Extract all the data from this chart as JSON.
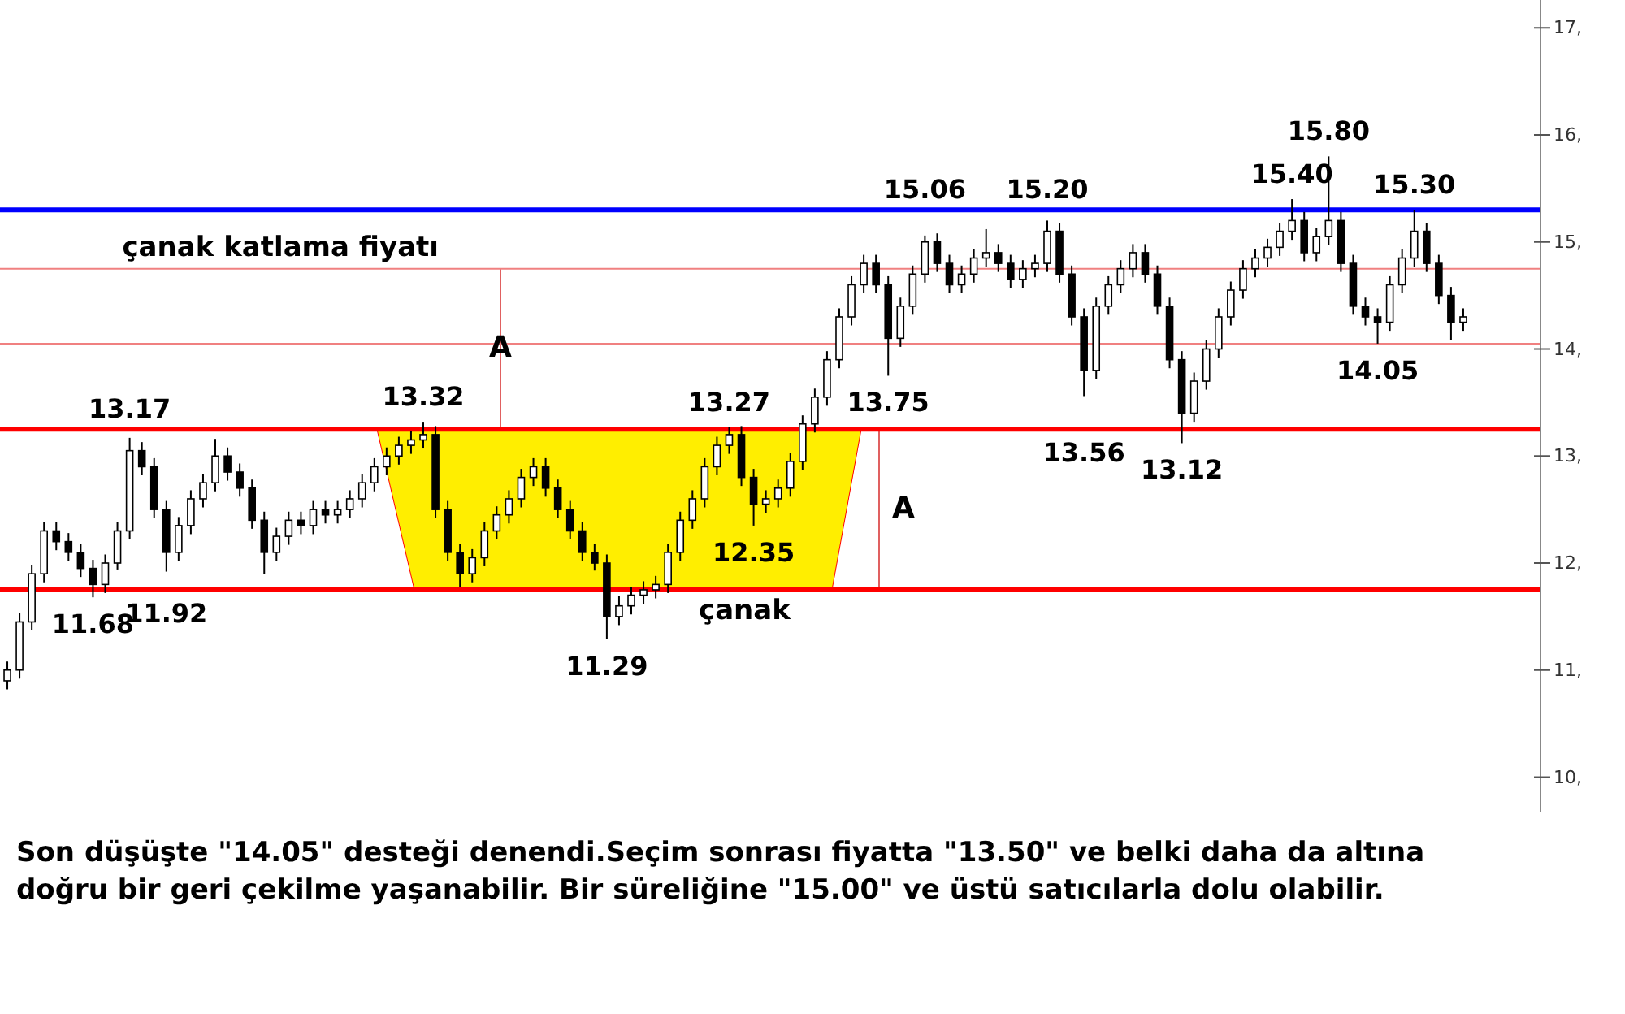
{
  "chart_data": {
    "type": "candlestick",
    "categories": [
      null,
      null,
      null,
      null,
      null,
      null,
      null,
      null,
      null,
      null,
      null,
      null,
      null,
      null,
      null,
      null,
      null,
      null,
      null,
      null,
      null,
      null,
      null,
      null,
      null,
      null,
      null,
      null,
      null,
      null,
      null,
      null,
      null,
      null,
      null,
      null,
      null,
      null,
      null,
      null,
      null,
      null,
      null,
      null,
      null,
      null,
      null,
      null,
      null,
      null,
      null,
      null,
      null,
      null,
      null,
      null,
      null,
      null,
      null,
      null,
      null,
      null,
      null,
      null,
      null,
      null,
      null,
      null,
      null,
      null,
      null,
      null,
      null,
      null,
      null,
      null,
      null,
      null,
      null,
      null,
      null,
      null,
      null,
      null,
      null,
      null,
      null,
      null,
      null,
      null,
      null,
      null,
      null,
      null,
      null,
      null,
      null,
      null,
      null,
      null,
      null,
      null,
      null,
      null,
      null,
      null,
      null,
      null,
      null,
      null,
      null,
      null,
      null,
      null,
      null,
      null,
      null,
      null,
      null,
      null
    ],
    "ohlc": [
      [
        10.9,
        11.08,
        10.82,
        11.0
      ],
      [
        11.0,
        11.53,
        10.92,
        11.45
      ],
      [
        11.45,
        11.98,
        11.37,
        11.9
      ],
      [
        11.9,
        12.38,
        11.82,
        12.3
      ],
      [
        12.3,
        12.38,
        12.12,
        12.2
      ],
      [
        12.2,
        12.28,
        12.02,
        12.1
      ],
      [
        12.1,
        12.18,
        11.87,
        11.95
      ],
      [
        11.95,
        12.03,
        11.68,
        11.8
      ],
      [
        11.8,
        12.08,
        11.72,
        12.0
      ],
      [
        12.0,
        12.38,
        11.94,
        12.3
      ],
      [
        12.3,
        13.17,
        12.22,
        13.05
      ],
      [
        13.05,
        13.13,
        12.82,
        12.9
      ],
      [
        12.9,
        12.98,
        12.42,
        12.5
      ],
      [
        12.5,
        12.58,
        11.92,
        12.1
      ],
      [
        12.1,
        12.43,
        12.02,
        12.35
      ],
      [
        12.35,
        12.68,
        12.27,
        12.6
      ],
      [
        12.6,
        12.83,
        12.52,
        12.75
      ],
      [
        12.75,
        13.16,
        12.67,
        13.0
      ],
      [
        13.0,
        13.08,
        12.77,
        12.85
      ],
      [
        12.85,
        12.93,
        12.62,
        12.7
      ],
      [
        12.7,
        12.78,
        12.32,
        12.4
      ],
      [
        12.4,
        12.48,
        11.9,
        12.1
      ],
      [
        12.1,
        12.33,
        12.02,
        12.25
      ],
      [
        12.25,
        12.48,
        12.17,
        12.4
      ],
      [
        12.4,
        12.48,
        12.27,
        12.35
      ],
      [
        12.35,
        12.58,
        12.27,
        12.5
      ],
      [
        12.5,
        12.58,
        12.37,
        12.45
      ],
      [
        12.45,
        12.58,
        12.37,
        12.5
      ],
      [
        12.5,
        12.68,
        12.42,
        12.6
      ],
      [
        12.6,
        12.83,
        12.52,
        12.75
      ],
      [
        12.75,
        12.98,
        12.67,
        12.9
      ],
      [
        12.9,
        13.08,
        12.82,
        13.0
      ],
      [
        13.0,
        13.18,
        12.92,
        13.1
      ],
      [
        13.1,
        13.23,
        13.02,
        13.15
      ],
      [
        13.15,
        13.32,
        13.07,
        13.2
      ],
      [
        13.2,
        13.28,
        12.42,
        12.5
      ],
      [
        12.5,
        12.58,
        12.02,
        12.1
      ],
      [
        12.1,
        12.18,
        11.78,
        11.9
      ],
      [
        11.9,
        12.13,
        11.82,
        12.05
      ],
      [
        12.05,
        12.38,
        11.97,
        12.3
      ],
      [
        12.3,
        12.53,
        12.22,
        12.45
      ],
      [
        12.45,
        12.68,
        12.37,
        12.6
      ],
      [
        12.6,
        12.88,
        12.52,
        12.8
      ],
      [
        12.8,
        12.98,
        12.72,
        12.9
      ],
      [
        12.9,
        12.98,
        12.62,
        12.7
      ],
      [
        12.7,
        12.78,
        12.42,
        12.5
      ],
      [
        12.5,
        12.58,
        12.22,
        12.3
      ],
      [
        12.3,
        12.38,
        12.02,
        12.1
      ],
      [
        12.1,
        12.18,
        11.93,
        12.0
      ],
      [
        12.0,
        12.08,
        11.29,
        11.5
      ],
      [
        11.5,
        11.69,
        11.42,
        11.6
      ],
      [
        11.6,
        11.78,
        11.52,
        11.7
      ],
      [
        11.7,
        11.83,
        11.62,
        11.75
      ],
      [
        11.75,
        11.88,
        11.67,
        11.8
      ],
      [
        11.8,
        12.18,
        11.72,
        12.1
      ],
      [
        12.1,
        12.48,
        12.02,
        12.4
      ],
      [
        12.4,
        12.68,
        12.32,
        12.6
      ],
      [
        12.6,
        12.98,
        12.52,
        12.9
      ],
      [
        12.9,
        13.18,
        12.82,
        13.1
      ],
      [
        13.1,
        13.27,
        13.02,
        13.2
      ],
      [
        13.2,
        13.28,
        12.72,
        12.8
      ],
      [
        12.8,
        12.88,
        12.35,
        12.55
      ],
      [
        12.55,
        12.68,
        12.47,
        12.6
      ],
      [
        12.6,
        12.78,
        12.52,
        12.7
      ],
      [
        12.7,
        13.03,
        12.62,
        12.95
      ],
      [
        12.95,
        13.38,
        12.87,
        13.3
      ],
      [
        13.3,
        13.63,
        13.22,
        13.55
      ],
      [
        13.55,
        13.98,
        13.47,
        13.9
      ],
      [
        13.9,
        14.38,
        13.82,
        14.3
      ],
      [
        14.3,
        14.68,
        14.22,
        14.6
      ],
      [
        14.6,
        14.88,
        14.52,
        14.8
      ],
      [
        14.8,
        14.88,
        14.52,
        14.6
      ],
      [
        14.6,
        14.68,
        13.75,
        14.1
      ],
      [
        14.1,
        14.48,
        14.02,
        14.4
      ],
      [
        14.4,
        14.78,
        14.32,
        14.7
      ],
      [
        14.7,
        15.06,
        14.62,
        15.0
      ],
      [
        15.0,
        15.08,
        14.72,
        14.8
      ],
      [
        14.8,
        14.88,
        14.52,
        14.6
      ],
      [
        14.6,
        14.78,
        14.52,
        14.7
      ],
      [
        14.7,
        14.93,
        14.62,
        14.85
      ],
      [
        14.85,
        15.12,
        14.77,
        14.9
      ],
      [
        14.9,
        14.98,
        14.72,
        14.8
      ],
      [
        14.8,
        14.88,
        14.57,
        14.65
      ],
      [
        14.65,
        14.83,
        14.57,
        14.75
      ],
      [
        14.75,
        14.88,
        14.67,
        14.8
      ],
      [
        14.8,
        15.2,
        14.72,
        15.1
      ],
      [
        15.1,
        15.18,
        14.62,
        14.7
      ],
      [
        14.7,
        14.78,
        14.22,
        14.3
      ],
      [
        14.3,
        14.38,
        13.56,
        13.8
      ],
      [
        13.8,
        14.48,
        13.72,
        14.4
      ],
      [
        14.4,
        14.68,
        14.32,
        14.6
      ],
      [
        14.6,
        14.83,
        14.52,
        14.75
      ],
      [
        14.75,
        14.98,
        14.67,
        14.9
      ],
      [
        14.9,
        14.98,
        14.62,
        14.7
      ],
      [
        14.7,
        14.78,
        14.32,
        14.4
      ],
      [
        14.4,
        14.48,
        13.82,
        13.9
      ],
      [
        13.9,
        13.98,
        13.12,
        13.4
      ],
      [
        13.4,
        13.78,
        13.32,
        13.7
      ],
      [
        13.7,
        14.08,
        13.62,
        14.0
      ],
      [
        14.0,
        14.38,
        13.92,
        14.3
      ],
      [
        14.3,
        14.63,
        14.22,
        14.55
      ],
      [
        14.55,
        14.83,
        14.47,
        14.75
      ],
      [
        14.75,
        14.93,
        14.67,
        14.85
      ],
      [
        14.85,
        15.03,
        14.77,
        14.95
      ],
      [
        14.95,
        15.18,
        14.87,
        15.1
      ],
      [
        15.1,
        15.4,
        15.02,
        15.2
      ],
      [
        15.2,
        15.28,
        14.82,
        14.9
      ],
      [
        14.9,
        15.13,
        14.82,
        15.05
      ],
      [
        15.05,
        15.8,
        14.97,
        15.2
      ],
      [
        15.2,
        15.28,
        14.72,
        14.8
      ],
      [
        14.8,
        14.88,
        14.32,
        14.4
      ],
      [
        14.4,
        14.48,
        14.22,
        14.3
      ],
      [
        14.3,
        14.38,
        14.05,
        14.25
      ],
      [
        14.25,
        14.68,
        14.17,
        14.6
      ],
      [
        14.6,
        14.93,
        14.52,
        14.85
      ],
      [
        14.85,
        15.3,
        14.77,
        15.1
      ],
      [
        15.1,
        15.18,
        14.72,
        14.8
      ],
      [
        14.8,
        14.88,
        14.42,
        14.5
      ],
      [
        14.5,
        14.58,
        14.08,
        14.25
      ],
      [
        14.25,
        14.38,
        14.17,
        14.3
      ]
    ],
    "ylim": [
      9.67,
      17.26
    ],
    "yticks": [
      {
        "value": 10,
        "label": "10,"
      },
      {
        "value": 11,
        "label": "11,"
      },
      {
        "value": 12,
        "label": "12,"
      },
      {
        "value": 13,
        "label": "13,"
      },
      {
        "value": 14,
        "label": "14,"
      },
      {
        "value": 15,
        "label": "15,"
      },
      {
        "value": 16,
        "label": "16,"
      },
      {
        "value": 17,
        "label": "17,"
      }
    ],
    "tick_labels": "y",
    "grid": false,
    "bands": [
      {
        "axis": "y",
        "from": 11.75,
        "to": 13.25,
        "color": "#ffee00"
      }
    ],
    "ref_lines": [
      {
        "axis": "y",
        "value": 13.25,
        "color": "#ff0000"
      },
      {
        "axis": "y",
        "value": 11.75,
        "label": "çanak",
        "color": "#ff0000"
      },
      {
        "axis": "y",
        "value": 15.3,
        "color": "#0000ff"
      },
      {
        "axis": "y",
        "value": 14.75,
        "label": "çanak katlama fiyatı",
        "color": "#f08080"
      },
      {
        "axis": "y",
        "value": 14.05,
        "color": "#f08080"
      }
    ],
    "annotations": [
      {
        "text": "11.68",
        "y": 11.68
      },
      {
        "text": "13.17",
        "y": 13.17
      },
      {
        "text": "11.92",
        "y": 11.92
      },
      {
        "text": "13.32",
        "y": 13.32
      },
      {
        "text": "11.29",
        "y": 11.29
      },
      {
        "text": "13.27",
        "y": 13.27
      },
      {
        "text": "12.35",
        "y": 12.35
      },
      {
        "text": "13.75",
        "y": 13.75
      },
      {
        "text": "15.06",
        "y": 15.06
      },
      {
        "text": "15.20",
        "y": 15.2
      },
      {
        "text": "13.56",
        "y": 13.56
      },
      {
        "text": "13.12",
        "y": 13.12
      },
      {
        "text": "15.40",
        "y": 15.4
      },
      {
        "text": "15.80",
        "y": 15.8
      },
      {
        "text": "15.30",
        "y": 15.3
      },
      {
        "text": "14.05",
        "y": 14.05
      },
      "A",
      "A",
      "Son düşüşte \"14.05\" desteği denendi.Seçim sonrası fiyatta \"13.50\" ve belki daha da altına doğru bir geri çekilme yaşanabilir. Bir süreliğine \"15.00\" ve üstü satıcılarla dolu olabilir."
    ]
  }
}
